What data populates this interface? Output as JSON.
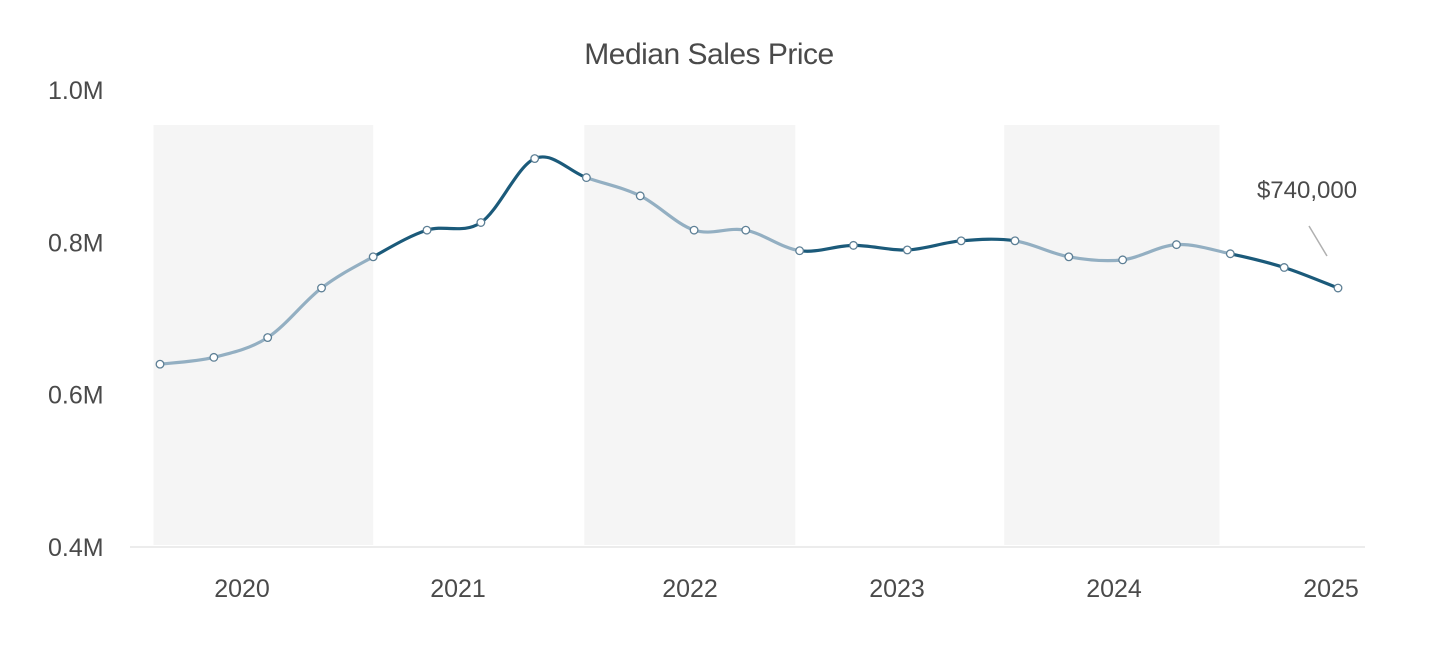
{
  "chart_data": {
    "type": "line",
    "title": "Median Sales Price",
    "xlabel": "",
    "ylabel": "",
    "ylim": [
      400000,
      1000000
    ],
    "y_ticks": [
      {
        "value": 1000000,
        "label": "1.0M"
      },
      {
        "value": 800000,
        "label": "0.8M"
      },
      {
        "value": 600000,
        "label": "0.6M"
      },
      {
        "value": 400000,
        "label": "0.4M"
      }
    ],
    "x_ticks": [
      {
        "value": 2020.0,
        "label": "2020"
      },
      {
        "value": 2021.0,
        "label": "2021"
      },
      {
        "value": 2022.0,
        "label": "2022"
      },
      {
        "value": 2023.0,
        "label": "2023"
      },
      {
        "value": 2024.0,
        "label": "2024"
      },
      {
        "value": 2025.0,
        "label": "2025"
      }
    ],
    "xlim": [
      2019.55,
      2025.1
    ],
    "shaded_bands": [
      [
        2019.55,
        2020.57
      ],
      [
        2021.55,
        2022.53
      ],
      [
        2023.5,
        2024.5
      ]
    ],
    "grid": false,
    "legend": "none",
    "colors": {
      "line_dark": "#1b5a7a",
      "line_light": "#93afc2",
      "band": "#f5f5f5",
      "marker_fill": "#ffffff"
    },
    "series": [
      {
        "x": [
          2019.58,
          2019.83,
          2020.08,
          2020.33,
          2020.57,
          2020.82,
          2021.07,
          2021.32,
          2021.56,
          2021.81,
          2022.06,
          2022.3,
          2022.55,
          2022.8,
          2023.05,
          2023.3,
          2023.55,
          2023.8,
          2024.05,
          2024.3,
          2024.55,
          2024.8,
          2025.05
        ],
        "values": [
          640000,
          649000,
          675000,
          740000,
          781000,
          816000,
          826000,
          910000,
          885000,
          861000,
          816000,
          816000,
          789000,
          796000,
          790000,
          802000,
          802000,
          781000,
          777000,
          797000,
          785000,
          767000,
          740000
        ]
      }
    ],
    "annotations": [
      {
        "text": "$740,000",
        "x": 2025.05,
        "value": 740000
      }
    ]
  }
}
